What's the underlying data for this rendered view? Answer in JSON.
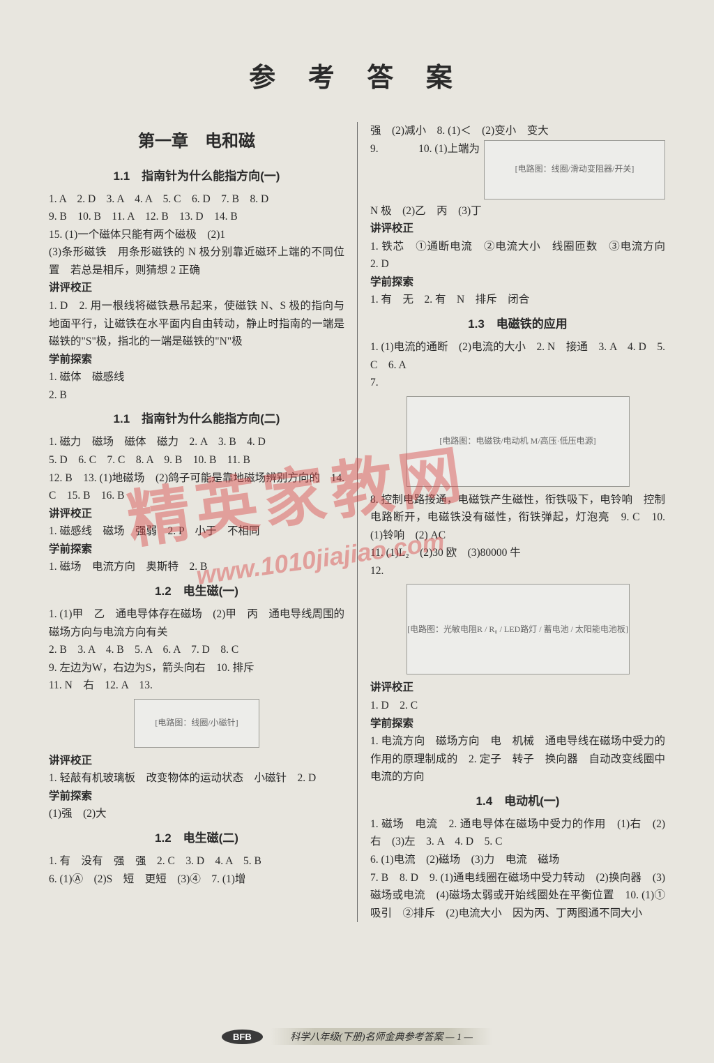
{
  "page": {
    "main_title": "参 考 答 案",
    "background_color": "#e8e6df",
    "text_color": "#2a2a2a",
    "watermark_text": "精英家教网",
    "watermark_url": "www.1010jiajiao.com",
    "watermark_color": "#d94a4a"
  },
  "left": {
    "chapter": "第一章　电和磁",
    "s1_1a_title": "1.1　指南针为什么能指方向(一)",
    "s1_1a_line1": "1. A　2. D　3. A　4. A　5. C　6. D　7. B　8. D",
    "s1_1a_line2": "9. B　10. B　11. A　12. B　13. D　14. B",
    "s1_1a_line3": "15. (1)一个磁体只能有两个磁极　(2)1",
    "s1_1a_line4": "(3)条形磁铁　用条形磁铁的 N 极分别靠近磁环上端的不同位置　若总是相斥，则猜想 2 正确",
    "s1_1a_head_jp": "讲评校正",
    "s1_1a_jp": "1. D　2. 用一根线将磁铁悬吊起来，使磁铁 N、S 极的指向与地面平行，让磁铁在水平面内自由转动，静止时指南的一端是磁铁的\"S\"极，指北的一端是磁铁的\"N\"极",
    "s1_1a_head_xq": "学前探索",
    "s1_1a_xq": "1. 磁体　磁感线",
    "s1_1a_xq2": "2. B",
    "s1_1b_title": "1.1　指南针为什么能指方向(二)",
    "s1_1b_line1": "1. 磁力　磁场　磁体　磁力　2. A　3. B　4. D",
    "s1_1b_line2": "5. D　6. C　7. C　8. A　9. B　10. B　11. B",
    "s1_1b_line3": "12. B　13. (1)地磁场　(2)鸽子可能是靠地磁场辨别方向的　14. C　15. B　16. B",
    "s1_1b_head_jp": "讲评校正",
    "s1_1b_jp": "1. 磁感线　磁场　强弱　2. P　小于　不相同",
    "s1_1b_head_xq": "学前探索",
    "s1_1b_xq": "1. 磁场　电流方向　奥斯特　2. B",
    "s1_2a_title": "1.2　电生磁(一)",
    "s1_2a_line1": "1. (1)甲　乙　通电导体存在磁场　(2)甲　丙　通电导线周围的磁场方向与电流方向有关",
    "s1_2a_line2": "2. B　3. A　4. B　5. A　6. A　7. D　8. C",
    "s1_2a_line3": "9. 左边为W，右边为S，箭头向右　10. 排斥",
    "s1_2a_line4": "11. N　右　12. A　13.",
    "s1_2a_diagram_label": "[电路图：线圈/小磁针]",
    "s1_2a_head_jp": "讲评校正",
    "s1_2a_jp": "1. 轻敲有机玻璃板　改变物体的运动状态　小磁针　2. D",
    "s1_2a_head_xq": "学前探索",
    "s1_2a_xq": "(1)强　(2)大",
    "s1_2b_title": "1.2　电生磁(二)",
    "s1_2b_line1": "1. 有　没有　强　强　2. C　3. D　4. A　5. B",
    "s1_2b_line2": "6. (1)Ⓐ　(2)S　短　更短　(3)④　7. (1)增"
  },
  "right": {
    "top_cont": "强　(2)减小　8. (1)＜　(2)变小　变大",
    "fig9_label": "9.",
    "fig9_diagram": "[电路图：线圈/滑动变阻器/开关]",
    "fig9_right": "10. (1)上端为",
    "fig9_line2": "N 极　(2)乙　丙　(3)丁",
    "r_head_jp1": "讲评校正",
    "r_jp1_line1": "1. 铁芯　①通断电流　②电流大小　线圈匝数　③电流方向　2. D",
    "r_head_xq1": "学前探索",
    "r_xq1": "1. 有　无　2. 有　N　排斥　闭合",
    "s1_3_title": "1.3　电磁铁的应用",
    "s1_3_line1": "1. (1)电流的通断　(2)电流的大小　2. N　接通　3. A　4. D　5. C　6. A",
    "s1_3_line2": "7.",
    "s1_3_diagram7": "[电路图：电磁铁/电动机 M/高压·低压电源]",
    "s1_3_line3": "8. 控制电路接通，电磁铁产生磁性，衔铁吸下，电铃响　控制电路断开，电磁铁没有磁性，衔铁弹起，灯泡亮　9. C　10. (1)铃响　(2) AC",
    "s1_3_line4": "11. (1)L₂　(2)30 欧　(3)80000 牛",
    "s1_3_line5": "12.",
    "s1_3_diagram12": "[电路图：光敏电阻R / R₀ / LED路灯 / 蓄电池 / 太阳能电池板]",
    "r_head_jp2": "讲评校正",
    "r_jp2": "1. D　2. C",
    "r_head_xq2": "学前探索",
    "r_xq2": "1. 电流方向　磁场方向　电　机械　通电导线在磁场中受力的作用的原理制成的　2. 定子　转子　换向器　自动改变线圈中电流的方向",
    "s1_4_title": "1.4　电动机(一)",
    "s1_4_line1": "1. 磁场　电流　2. 通电导体在磁场中受力的作用　(1)右　(2)右　(3)左　3. A　4. D　5. C",
    "s1_4_line2": "6. (1)电流　(2)磁场　(3)力　电流　磁场",
    "s1_4_line3": "7. B　8. D　9. (1)通电线圈在磁场中受力转动　(2)换向器　(3)磁场或电流　(4)磁场太弱或开始线圈处在平衡位置　10. (1)①吸引　②排斥　(2)电流大小　因为丙、丁两图通不同大小"
  },
  "footer": {
    "badge": "BFB",
    "text": "科学八年级(下册)名师金典参考答案 — 1 —"
  }
}
